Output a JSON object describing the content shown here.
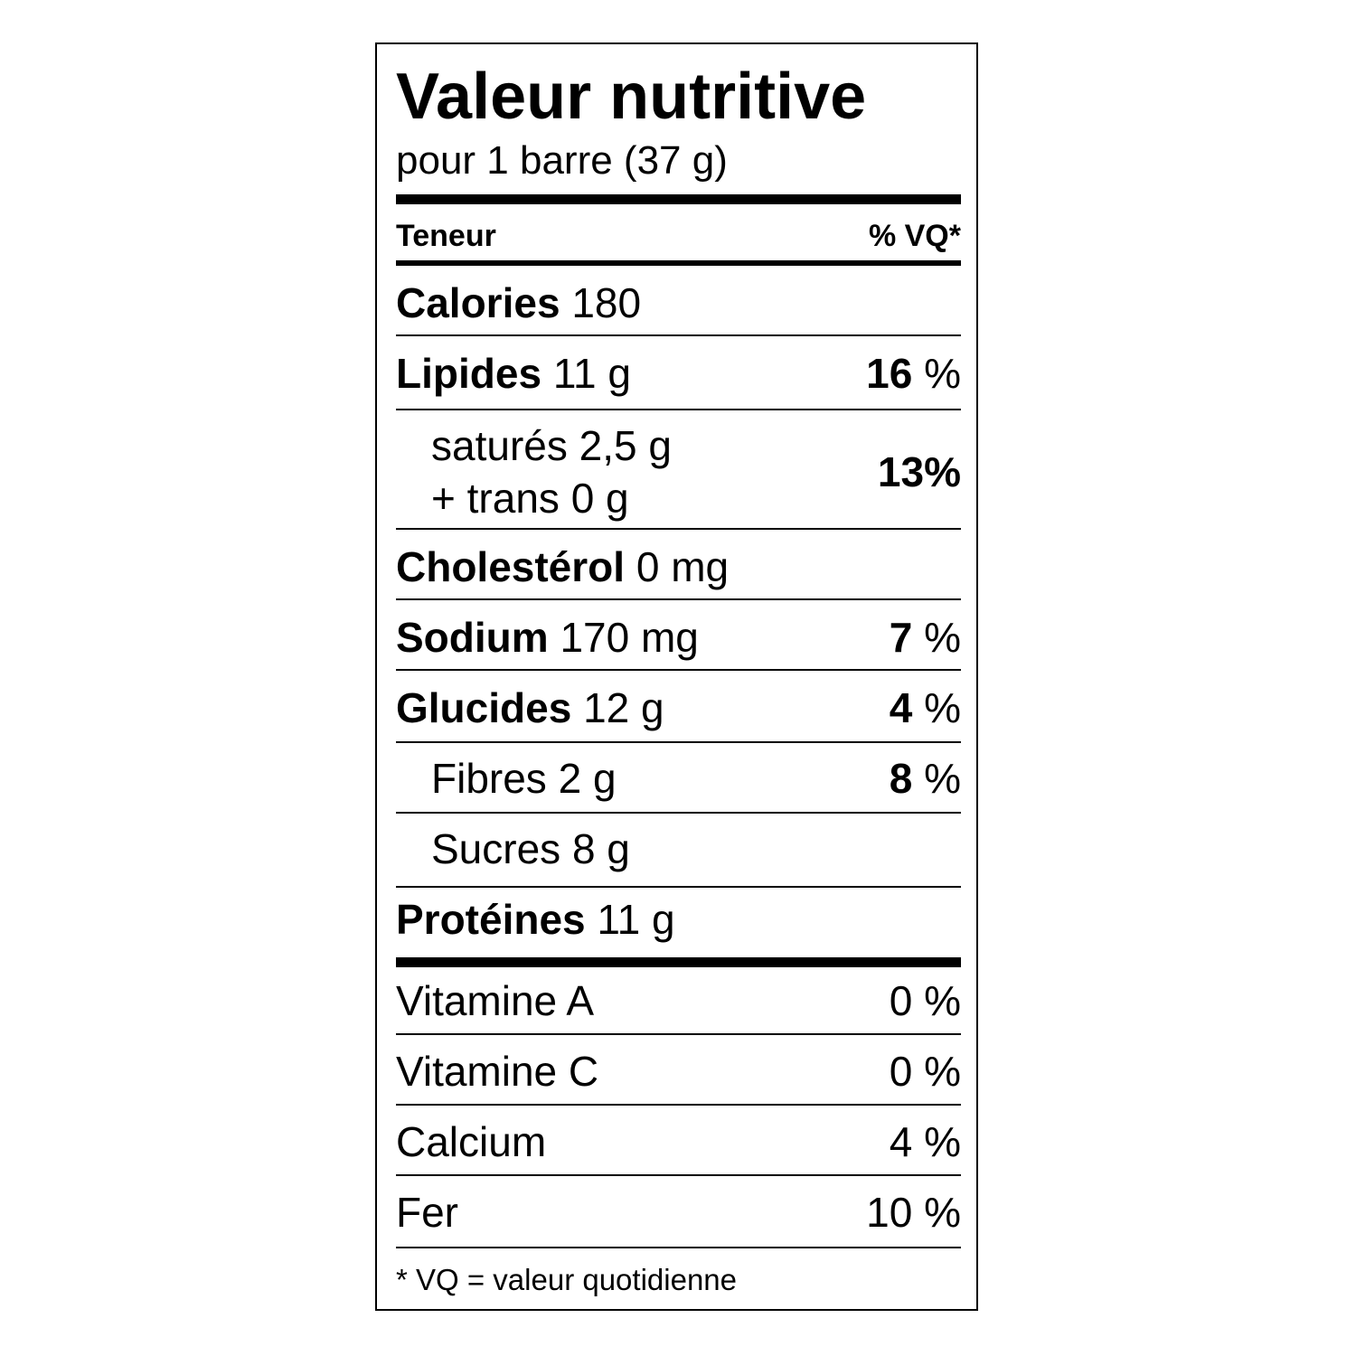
{
  "title": "Valeur nutritive",
  "serving": "pour 1 barre (37 g)",
  "header": {
    "left": "Teneur",
    "right": "% VQ*"
  },
  "rows": [
    {
      "name": "Calories",
      "amount": "180",
      "dv": ""
    },
    {
      "name": "Lipides",
      "amount": "11 g",
      "dv_num": "16",
      "dv_unit": " %"
    },
    {
      "line1": "saturés 2,5 g",
      "line2": "+ trans 0 g",
      "dv_num": "13",
      "dv_unit": "%"
    },
    {
      "name": "Cholestérol",
      "amount": "0 mg"
    },
    {
      "name": "Sodium",
      "amount": "170 mg",
      "dv_num": "7",
      "dv_unit": " %"
    },
    {
      "name": "Glucides",
      "amount": "12 g",
      "dv_num": "4",
      "dv_unit": " %"
    },
    {
      "label": "Fibres 2 g",
      "dv_num": "8",
      "dv_unit": " %"
    },
    {
      "label": "Sucres 8 g"
    },
    {
      "name": "Protéines",
      "amount": "11 g"
    }
  ],
  "vitamins": [
    {
      "name": "Vitamine A",
      "dv": "0 %"
    },
    {
      "name": "Vitamine C",
      "dv": "0 %"
    },
    {
      "name": "Calcium",
      "dv": "4 %"
    },
    {
      "name": "Fer",
      "dv": "10 %"
    }
  ],
  "footnote": "* VQ = valeur quotidienne"
}
